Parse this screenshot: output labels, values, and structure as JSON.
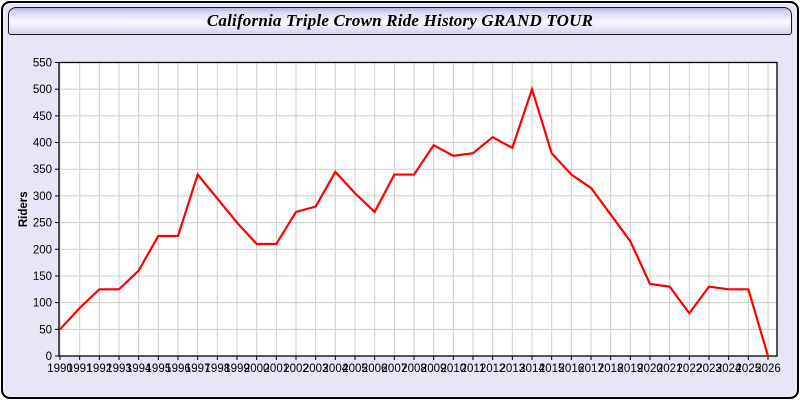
{
  "window": {
    "title": "California Triple Crown Ride History GRAND TOUR"
  },
  "colors": {
    "window_bg": "#e6e6f6",
    "plot_bg": "#ffffff",
    "grid": "#cccccc",
    "axis": "#000000",
    "tick_label": "#000000",
    "line": "#ff0000"
  },
  "chart_data": {
    "type": "line",
    "title": "California Triple Crown Ride History GRAND TOUR",
    "xlabel": "",
    "ylabel": "Riders",
    "legend": "none",
    "grid": true,
    "ylim": [
      0,
      550
    ],
    "ytick_step": 50,
    "yticks": [
      0,
      50,
      100,
      150,
      200,
      250,
      300,
      350,
      400,
      450,
      500,
      550
    ],
    "categories": [
      "1990",
      "1991",
      "1992",
      "1993",
      "1994",
      "1995",
      "1996",
      "1997",
      "1998",
      "1999",
      "2000",
      "2001",
      "2002",
      "2003",
      "2004",
      "2005",
      "2006",
      "2007",
      "2008",
      "2009",
      "2010",
      "2011",
      "2012",
      "2013",
      "2014",
      "2015",
      "2016",
      "2017",
      "2018",
      "2019",
      "2020",
      "2021",
      "2022",
      "2023",
      "2024",
      "2025",
      "2026"
    ],
    "series": [
      {
        "name": "Riders",
        "color": "#ff0000",
        "values": [
          50,
          90,
          125,
          125,
          160,
          225,
          225,
          340,
          295,
          250,
          210,
          210,
          270,
          280,
          345,
          305,
          270,
          340,
          340,
          395,
          375,
          380,
          410,
          390,
          500,
          380,
          340,
          315,
          265,
          215,
          135,
          130,
          80,
          130,
          125,
          125,
          0
        ]
      }
    ]
  }
}
